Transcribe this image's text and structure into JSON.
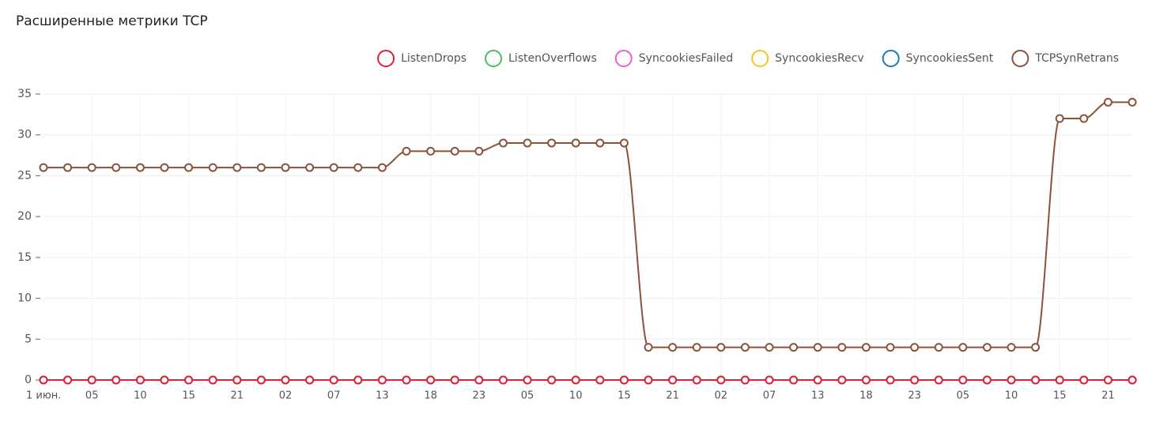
{
  "chart_data": {
    "type": "line",
    "title": "Расширенные метрики TCP",
    "categories": [
      "1 июн.",
      null,
      "05",
      null,
      "10",
      null,
      "15",
      null,
      "21",
      null,
      "02",
      null,
      "07",
      null,
      "13",
      null,
      "18",
      null,
      "23",
      null,
      "05",
      null,
      "10",
      null,
      "15",
      null,
      "21",
      null,
      "02",
      null,
      "07",
      null,
      "13",
      null,
      "18",
      null,
      "23",
      null,
      "05",
      null,
      "10",
      null,
      "15",
      null,
      "21",
      null
    ],
    "ylim": [
      0,
      35
    ],
    "yticks": [
      0,
      5,
      10,
      15,
      20,
      25,
      30,
      35
    ],
    "grid": true,
    "legend": "top-right",
    "series": [
      {
        "name": "ListenDrops",
        "color": "#e0203a",
        "values": [
          0,
          0,
          0,
          0,
          0,
          0,
          0,
          0,
          0,
          0,
          0,
          0,
          0,
          0,
          0,
          0,
          0,
          0,
          0,
          0,
          0,
          0,
          0,
          0,
          0,
          0,
          0,
          0,
          0,
          0,
          0,
          0,
          0,
          0,
          0,
          0,
          0,
          0,
          0,
          0,
          0,
          0,
          0,
          0,
          0,
          0
        ]
      },
      {
        "name": "ListenOverflows",
        "color": "#4cbb5c",
        "values": [
          0,
          0,
          0,
          0,
          0,
          0,
          0,
          0,
          0,
          0,
          0,
          0,
          0,
          0,
          0,
          0,
          0,
          0,
          0,
          0,
          0,
          0,
          0,
          0,
          0,
          0,
          0,
          0,
          0,
          0,
          0,
          0,
          0,
          0,
          0,
          0,
          0,
          0,
          0,
          0,
          0,
          0,
          0,
          0,
          0,
          0
        ]
      },
      {
        "name": "SyncookiesFailed",
        "color": "#f25bd8",
        "values": [
          0,
          0,
          0,
          0,
          0,
          0,
          0,
          0,
          0,
          0,
          0,
          0,
          0,
          0,
          0,
          0,
          0,
          0,
          0,
          0,
          0,
          0,
          0,
          0,
          0,
          0,
          0,
          0,
          0,
          0,
          0,
          0,
          0,
          0,
          0,
          0,
          0,
          0,
          0,
          0,
          0,
          0,
          0,
          0,
          0,
          0
        ]
      },
      {
        "name": "SyncookiesRecv",
        "color": "#f5c623",
        "values": [
          0,
          0,
          0,
          0,
          0,
          0,
          0,
          0,
          0,
          0,
          0,
          0,
          0,
          0,
          0,
          0,
          0,
          0,
          0,
          0,
          0,
          0,
          0,
          0,
          0,
          0,
          0,
          0,
          0,
          0,
          0,
          0,
          0,
          0,
          0,
          0,
          0,
          0,
          0,
          0,
          0,
          0,
          0,
          0,
          0,
          0
        ]
      },
      {
        "name": "SyncookiesSent",
        "color": "#1a78b8",
        "values": [
          0,
          0,
          0,
          0,
          0,
          0,
          0,
          0,
          0,
          0,
          0,
          0,
          0,
          0,
          0,
          0,
          0,
          0,
          0,
          0,
          0,
          0,
          0,
          0,
          0,
          0,
          0,
          0,
          0,
          0,
          0,
          0,
          0,
          0,
          0,
          0,
          0,
          0,
          0,
          0,
          0,
          0,
          0,
          0,
          0,
          0
        ]
      },
      {
        "name": "TCPSynRetrans",
        "color": "#8b5239",
        "values": [
          26,
          26,
          26,
          26,
          26,
          26,
          26,
          26,
          26,
          26,
          26,
          26,
          26,
          26,
          26,
          28,
          28,
          28,
          28,
          29,
          29,
          29,
          29,
          29,
          29,
          4,
          4,
          4,
          4,
          4,
          4,
          4,
          4,
          4,
          4,
          4,
          4,
          4,
          4,
          4,
          4,
          4,
          32,
          32,
          34,
          34
        ]
      }
    ]
  }
}
